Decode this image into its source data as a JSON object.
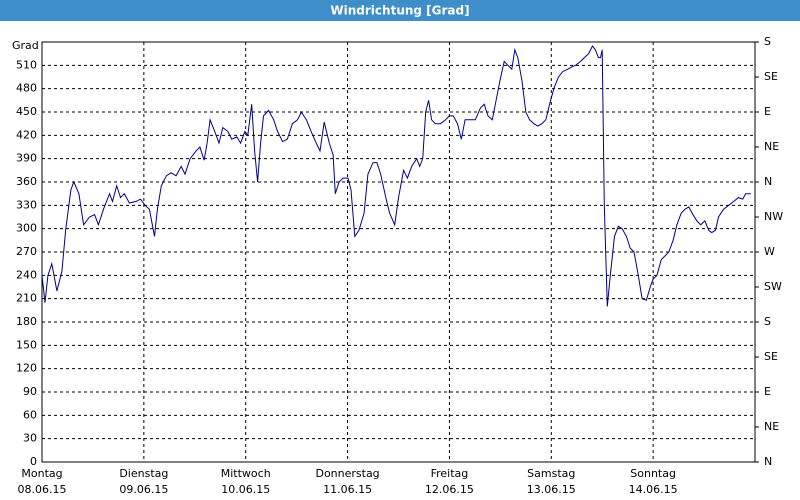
{
  "chart_data": {
    "type": "line",
    "title": "Windrichtung [Grad]",
    "y_label": "Grad",
    "x": [
      0,
      0.7,
      1.4,
      2.3,
      3.5,
      4.7,
      5.6,
      6.8,
      7.5,
      8.7,
      9.8,
      11.2,
      12.4,
      13.3,
      14.5,
      15.9,
      16.6,
      17.6,
      18.5,
      19.4,
      20.6,
      22.2,
      23.2,
      24.3,
      25.3,
      26.5,
      27.2,
      28.1,
      29.3,
      30.4,
      31.6,
      32.8,
      33.7,
      34.9,
      36.3,
      37.2,
      38.2,
      38.9,
      39.6,
      40.7,
      41.7,
      42.6,
      43.8,
      44.7,
      45.9,
      46.8,
      47.8,
      48.5,
      49.4,
      50.1,
      50.8,
      51.5,
      52.2,
      53.4,
      54.6,
      55.5,
      56.7,
      57.8,
      59.0,
      60.2,
      61.1,
      62.3,
      63.4,
      64.6,
      65.5,
      66.5,
      67.7,
      68.6,
      69.1,
      70.0,
      70.9,
      72.1,
      72.8,
      73.7,
      74.7,
      75.9,
      76.8,
      78.0,
      78.9,
      79.8,
      81.0,
      81.9,
      83.1,
      84.0,
      85.2,
      86.1,
      87.1,
      88.3,
      89.0,
      89.7,
      90.4,
      91.1,
      91.8,
      92.7,
      93.9,
      95.1,
      96.0,
      96.9,
      97.9,
      98.8,
      99.7,
      100.9,
      102.1,
      103.3,
      104.2,
      105.1,
      106.1,
      107.0,
      107.9,
      108.9,
      109.8,
      110.7,
      111.4,
      112.1,
      113.1,
      114.0,
      114.9,
      115.9,
      116.8,
      117.8,
      118.7,
      119.6,
      120.6,
      121.7,
      122.7,
      123.9,
      124.8,
      125.7,
      126.9,
      127.8,
      128.8,
      129.7,
      130.4,
      131.1,
      131.6,
      132.0,
      132.5,
      133.2,
      133.9,
      134.9,
      135.8,
      136.7,
      137.7,
      138.6,
      139.5,
      140.5,
      141.4,
      142.4,
      143.3,
      144.0,
      144.9,
      145.9,
      146.8,
      147.7,
      148.7,
      149.6,
      150.6,
      151.5,
      152.4,
      153.4,
      154.3,
      155.2,
      156.2,
      157.1,
      157.8,
      158.7,
      159.4,
      160.6,
      161.8,
      163.0,
      164.1,
      165.1,
      165.8,
      167.0
    ],
    "series": [
      {
        "name": "Windrichtung",
        "color": "#00008b",
        "values": [
          240,
          205,
          240,
          255,
          220,
          245,
          300,
          350,
          360,
          345,
          305,
          315,
          318,
          305,
          325,
          345,
          335,
          355,
          340,
          345,
          333,
          335,
          338,
          330,
          325,
          290,
          325,
          355,
          368,
          372,
          368,
          380,
          370,
          390,
          400,
          405,
          388,
          410,
          440,
          425,
          410,
          430,
          425,
          415,
          418,
          410,
          425,
          420,
          460,
          400,
          360,
          410,
          445,
          452,
          440,
          425,
          412,
          415,
          435,
          440,
          450,
          440,
          425,
          410,
          400,
          437,
          410,
          395,
          345,
          360,
          365,
          365,
          350,
          290,
          298,
          320,
          370,
          385,
          385,
          370,
          340,
          320,
          305,
          340,
          375,
          365,
          380,
          390,
          380,
          390,
          450,
          465,
          440,
          435,
          435,
          440,
          445,
          445,
          435,
          415,
          440,
          440,
          440,
          455,
          460,
          445,
          440,
          465,
          490,
          515,
          510,
          505,
          530,
          520,
          490,
          450,
          440,
          435,
          432,
          435,
          440,
          460,
          480,
          495,
          502,
          505,
          508,
          510,
          515,
          520,
          525,
          535,
          530,
          520,
          520,
          530,
          330,
          200,
          240,
          290,
          303,
          300,
          290,
          275,
          270,
          240,
          210,
          208,
          225,
          235,
          240,
          260,
          265,
          270,
          285,
          305,
          320,
          325,
          328,
          318,
          310,
          305,
          310,
          298,
          295,
          298,
          315,
          325,
          330,
          335,
          340,
          338,
          345,
          345
        ]
      }
    ],
    "xlim": [
      0,
      168
    ],
    "xticks": [
      {
        "value": 0,
        "label": [
          "Montag",
          "08.06.15"
        ]
      },
      {
        "value": 24,
        "label": [
          "Dienstag",
          "09.06.15"
        ]
      },
      {
        "value": 48,
        "label": [
          "Mittwoch",
          "10.06.15"
        ]
      },
      {
        "value": 72,
        "label": [
          "Donnerstag",
          "11.06.15"
        ]
      },
      {
        "value": 96,
        "label": [
          "Freitag",
          "12.06.15"
        ]
      },
      {
        "value": 120,
        "label": [
          "Samstag",
          "13.06.15"
        ]
      },
      {
        "value": 144,
        "label": [
          "Sonntag",
          "14.06.15"
        ]
      }
    ],
    "ylim": [
      0,
      540
    ],
    "yticks": [
      0,
      30,
      60,
      90,
      120,
      150,
      180,
      210,
      240,
      270,
      300,
      330,
      360,
      390,
      420,
      450,
      480,
      510
    ],
    "y2lim": [
      0,
      540
    ],
    "y2ticks": [
      {
        "value": 0,
        "label": "N"
      },
      {
        "value": 45,
        "label": "NE"
      },
      {
        "value": 90,
        "label": "E"
      },
      {
        "value": 135,
        "label": "SE"
      },
      {
        "value": 180,
        "label": "S"
      },
      {
        "value": 225,
        "label": "SW"
      },
      {
        "value": 270,
        "label": "W"
      },
      {
        "value": 315,
        "label": "NW"
      },
      {
        "value": 360,
        "label": "N"
      },
      {
        "value": 405,
        "label": "NE"
      },
      {
        "value": 450,
        "label": "E"
      },
      {
        "value": 495,
        "label": "SE"
      },
      {
        "value": 540,
        "label": "S"
      }
    ],
    "grid": true
  }
}
